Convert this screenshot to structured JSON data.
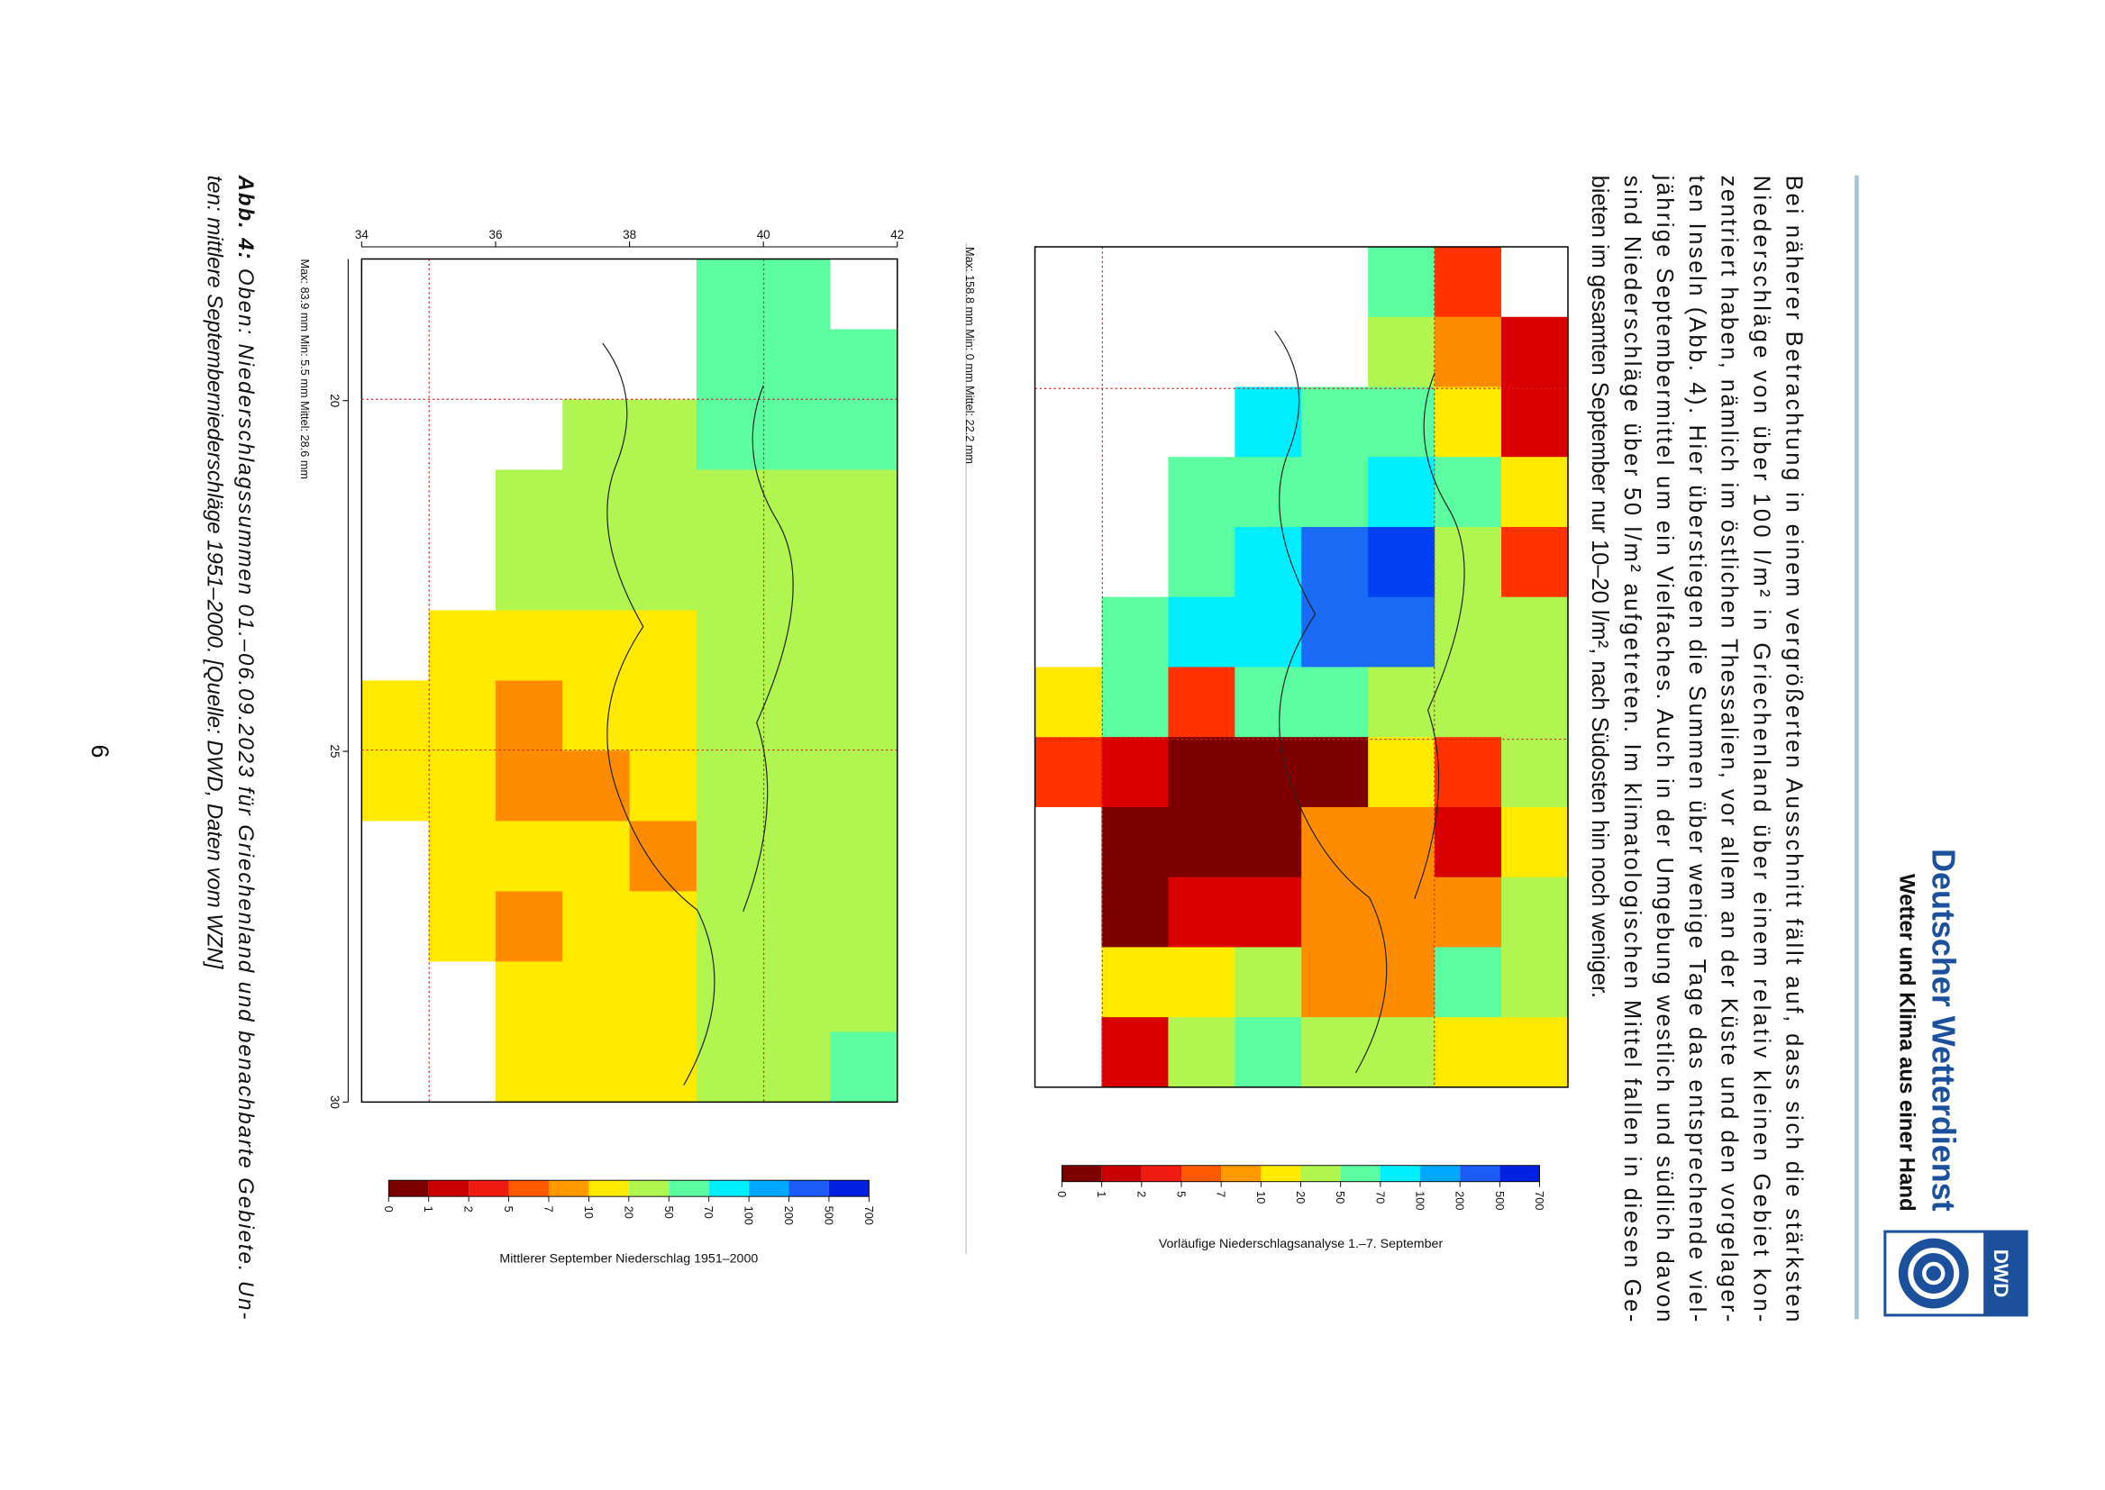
{
  "header": {
    "title": "Deutscher Wetterdienst",
    "subtitle": "Wetter und Klima aus einer Hand",
    "logo": "DWD"
  },
  "body": {
    "lines": [
      "Bei näherer Betrachtung in einem vergrößerten Ausschnitt fällt auf, dass sich die stärksten",
      "Niederschläge von über 100 l/m² in Griechenland über einem relativ kleinen Gebiet kon-",
      "zentriert haben, nämlich im östlichen Thessalien, vor allem an der Küste und den vorgelager-",
      "ten Inseln (Abb. 4). Hier überstiegen die Summen über wenige Tage das entsprechende viel-",
      "jährige Septembermittel um ein Vielfaches. Auch in der Umgebung westlich und südlich davon",
      "sind Niederschläge über 50 l/m² aufgetreten. Im klimatologischen Mittel fallen in diesen Ge-",
      "bieten im gesamten September nur 10–20 l/m², nach Südosten hin noch weniger."
    ]
  },
  "figures": [
    {
      "stats": "Max: 158.8 mm  Min: 0 mm  Mittel: 22.2 mm",
      "colorbar": {
        "ticks": [
          "0",
          "1",
          "2",
          "5",
          "7",
          "10",
          "20",
          "50",
          "70",
          "100",
          "200",
          "500",
          "700"
        ],
        "title": "Vorläufige Niederschlagsanalyse 1.–7. September"
      }
    },
    {
      "x_ticks": [
        "34",
        "36",
        "38",
        "40",
        "42"
      ],
      "y_ticks": [
        "20",
        "25",
        "30"
      ],
      "stats": "Max: 83.9 mm  Min: 5.5 mm  Mittel: 28.6 mm",
      "colorbar": {
        "ticks": [
          "0",
          "1",
          "2",
          "5",
          "7",
          "10",
          "20",
          "50",
          "70",
          "100",
          "200",
          "500",
          "700"
        ],
        "title": "Mittlerer September Niederschlag 1951–2000"
      }
    }
  ],
  "caption": {
    "label": "Abb. 4:",
    "lines": [
      " Oben: Niederschlagssummen 01.–06.09.2023 für Griechenland und benachbarte Gebiete. Un-",
      "ten: mittlere Septemberniederschläge 1951–2000. [Quelle: DWD, Daten vom WZN]"
    ]
  },
  "page_number": "6"
}
